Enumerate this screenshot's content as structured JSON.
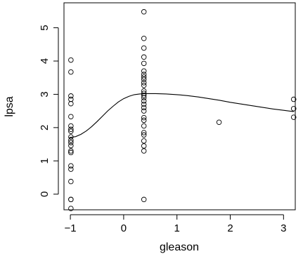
{
  "chart_data": {
    "type": "scatter",
    "title": "",
    "xlabel": "gleason",
    "ylabel": "lpsa",
    "xlim": [
      -1.12,
      3.22
    ],
    "ylim": [
      -0.47,
      5.75
    ],
    "xticks": [
      -1,
      0,
      1,
      2,
      3
    ],
    "xtick_labels": [
      "−1",
      "0",
      "1",
      "2",
      "3"
    ],
    "yticks": [
      0,
      1,
      2,
      3,
      4,
      5
    ],
    "ytick_labels": [
      "0",
      "1",
      "2",
      "3",
      "4",
      "5"
    ],
    "grid": false,
    "legend": "none",
    "marker": "open-circle",
    "points": [
      {
        "x": -0.99,
        "y": 4.03
      },
      {
        "x": -0.99,
        "y": 3.67
      },
      {
        "x": -0.99,
        "y": 2.95
      },
      {
        "x": -0.99,
        "y": 2.85
      },
      {
        "x": -0.99,
        "y": 2.72
      },
      {
        "x": -0.99,
        "y": 2.33
      },
      {
        "x": -0.99,
        "y": 2.05
      },
      {
        "x": -0.99,
        "y": 1.95
      },
      {
        "x": -0.99,
        "y": 1.89
      },
      {
        "x": -0.99,
        "y": 1.72
      },
      {
        "x": -0.99,
        "y": 1.62
      },
      {
        "x": -0.99,
        "y": 1.55
      },
      {
        "x": -0.99,
        "y": 1.46
      },
      {
        "x": -0.99,
        "y": 1.3
      },
      {
        "x": -0.99,
        "y": 1.25
      },
      {
        "x": -0.99,
        "y": 0.85
      },
      {
        "x": -0.99,
        "y": 0.75
      },
      {
        "x": -0.99,
        "y": 0.38
      },
      {
        "x": -0.99,
        "y": -0.16
      },
      {
        "x": -0.99,
        "y": -0.16
      },
      {
        "x": -0.99,
        "y": -0.43
      },
      {
        "x": 0.38,
        "y": 5.48
      },
      {
        "x": 0.38,
        "y": 4.68
      },
      {
        "x": 0.38,
        "y": 4.39
      },
      {
        "x": 0.38,
        "y": 4.12
      },
      {
        "x": 0.38,
        "y": 3.93
      },
      {
        "x": 0.38,
        "y": 3.7
      },
      {
        "x": 0.38,
        "y": 3.6
      },
      {
        "x": 0.38,
        "y": 3.52
      },
      {
        "x": 0.38,
        "y": 3.45
      },
      {
        "x": 0.38,
        "y": 3.35
      },
      {
        "x": 0.38,
        "y": 3.27
      },
      {
        "x": 0.38,
        "y": 3.1
      },
      {
        "x": 0.38,
        "y": 3.03
      },
      {
        "x": 0.38,
        "y": 2.97
      },
      {
        "x": 0.38,
        "y": 2.9
      },
      {
        "x": 0.38,
        "y": 2.8
      },
      {
        "x": 0.38,
        "y": 2.7
      },
      {
        "x": 0.38,
        "y": 2.6
      },
      {
        "x": 0.38,
        "y": 2.5
      },
      {
        "x": 0.38,
        "y": 2.3
      },
      {
        "x": 0.38,
        "y": 2.22
      },
      {
        "x": 0.38,
        "y": 2.05
      },
      {
        "x": 0.38,
        "y": 1.85
      },
      {
        "x": 0.38,
        "y": 1.78
      },
      {
        "x": 0.38,
        "y": 1.6
      },
      {
        "x": 0.38,
        "y": 1.45
      },
      {
        "x": 0.38,
        "y": 1.3
      },
      {
        "x": 0.38,
        "y": -0.16
      },
      {
        "x": 1.79,
        "y": 2.16
      },
      {
        "x": 3.19,
        "y": 2.85
      },
      {
        "x": 3.19,
        "y": 2.57
      },
      {
        "x": 3.19,
        "y": 2.31
      }
    ],
    "smooth_curve": {
      "x": [
        -1.02,
        -0.9,
        -0.8,
        -0.7,
        -0.6,
        -0.5,
        -0.4,
        -0.3,
        -0.2,
        -0.1,
        0.0,
        0.1,
        0.2,
        0.3,
        0.4,
        0.6,
        0.8,
        1.0,
        1.2,
        1.4,
        1.6,
        1.8,
        2.0,
        2.2,
        2.4,
        2.6,
        2.8,
        3.0,
        3.19
      ],
      "y": [
        1.7,
        1.73,
        1.8,
        1.9,
        2.03,
        2.18,
        2.34,
        2.5,
        2.64,
        2.77,
        2.87,
        2.94,
        2.99,
        3.01,
        3.02,
        3.02,
        3.01,
        2.99,
        2.96,
        2.92,
        2.87,
        2.82,
        2.76,
        2.71,
        2.66,
        2.61,
        2.56,
        2.52,
        2.48
      ]
    }
  }
}
